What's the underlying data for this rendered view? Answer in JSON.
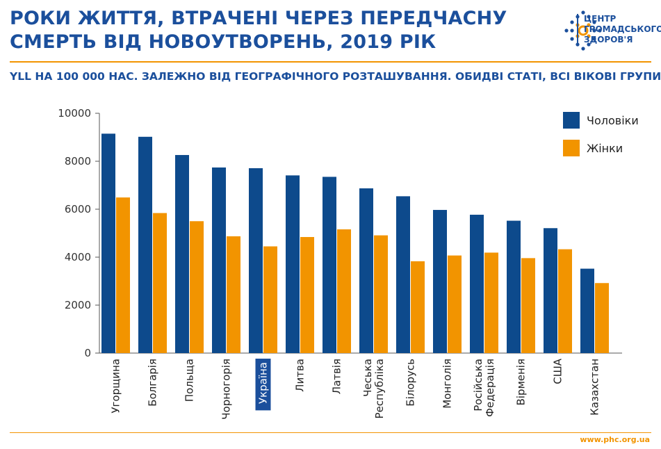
{
  "header": {
    "title_line1": "РОКИ ЖИТТЯ, ВТРАЧЕНІ ЧЕРЕЗ ПЕРЕДЧАСНУ",
    "title_line2": "СМЕРТЬ ВІД НОВОУТВОРЕНЬ, 2019 РІК",
    "subtitle": "YLL НА 100 000 НАС. ЗАЛЕЖНО ВІД ГЕОГРАФІЧНОГО РОЗТАШУВАННЯ. ОБИДВІ СТАТІ, ВСІ ВІКОВІ ГРУПИ."
  },
  "logo": {
    "line1": "ЦЕНТР",
    "line2": "ГРОМАДСЬКОГО",
    "line3": "ЗДОРОВ'Я"
  },
  "footer": {
    "site": "www.phc.org.ua"
  },
  "colors": {
    "men": "#0d4a8c",
    "women": "#f29400",
    "accent": "#f29400",
    "brand": "#1b4f9c"
  },
  "chart_data": {
    "type": "bar",
    "categories": [
      "Угорщина",
      "Болгарія",
      "Польща",
      "Чорногорія",
      "Україна",
      "Литва",
      "Латвія",
      "Чеська Республіка",
      "Білорусь",
      "Монголія",
      "Російська Федерація",
      "Вірменія",
      "США",
      "Казахстан"
    ],
    "category_lines": [
      [
        "Угорщина"
      ],
      [
        "Болгарія"
      ],
      [
        "Польща"
      ],
      [
        "Чорногорія"
      ],
      [
        "Україна"
      ],
      [
        "Литва"
      ],
      [
        "Латвія"
      ],
      [
        "Чеська",
        "Республіка"
      ],
      [
        "Білорусь"
      ],
      [
        "Монголія"
      ],
      [
        "Російська",
        "Федерація"
      ],
      [
        "Вірменія"
      ],
      [
        "США"
      ],
      [
        "Казахстан"
      ]
    ],
    "highlighted_category": "Україна",
    "series": [
      {
        "name": "Чоловіки",
        "values": [
          9150,
          9020,
          8260,
          7740,
          7710,
          7410,
          7350,
          6870,
          6540,
          5970,
          5770,
          5520,
          5210,
          3520
        ]
      },
      {
        "name": "Жінки",
        "values": [
          6490,
          5840,
          5500,
          4870,
          4450,
          4840,
          5160,
          4910,
          3830,
          4070,
          4190,
          3960,
          4330,
          2920
        ]
      }
    ],
    "ylim": [
      0,
      10000
    ],
    "yticks": [
      "0",
      "2000",
      "4000",
      "6000",
      "8000",
      "10000"
    ],
    "xlabel": "",
    "ylabel": "",
    "grid": false,
    "legend": "top-right"
  }
}
